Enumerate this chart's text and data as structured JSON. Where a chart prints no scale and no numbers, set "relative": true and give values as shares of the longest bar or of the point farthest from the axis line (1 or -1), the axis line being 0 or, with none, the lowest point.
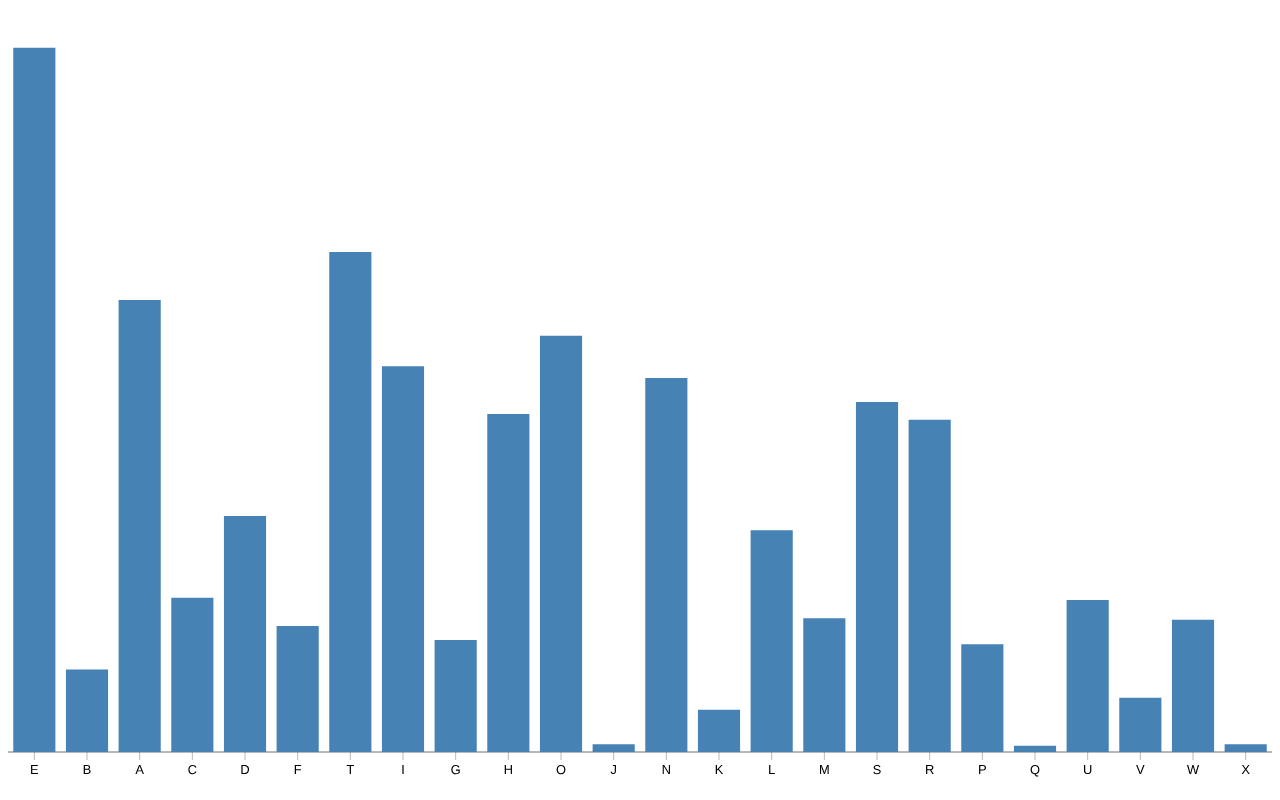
{
  "chart_data": {
    "type": "bar",
    "relative": true,
    "color": "#4682b4",
    "categories": [
      "E",
      "B",
      "A",
      "C",
      "D",
      "F",
      "T",
      "I",
      "G",
      "H",
      "O",
      "J",
      "N",
      "K",
      "L",
      "M",
      "S",
      "R",
      "P",
      "Q",
      "U",
      "V",
      "W",
      "X"
    ],
    "values": [
      1,
      0.117,
      0.642,
      0.219,
      0.335,
      0.179,
      0.71,
      0.548,
      0.159,
      0.48,
      0.591,
      0.011,
      0.531,
      0.06,
      0.315,
      0.19,
      0.497,
      0.472,
      0.153,
      0.009,
      0.216,
      0.077,
      0.188,
      0.011
    ]
  }
}
